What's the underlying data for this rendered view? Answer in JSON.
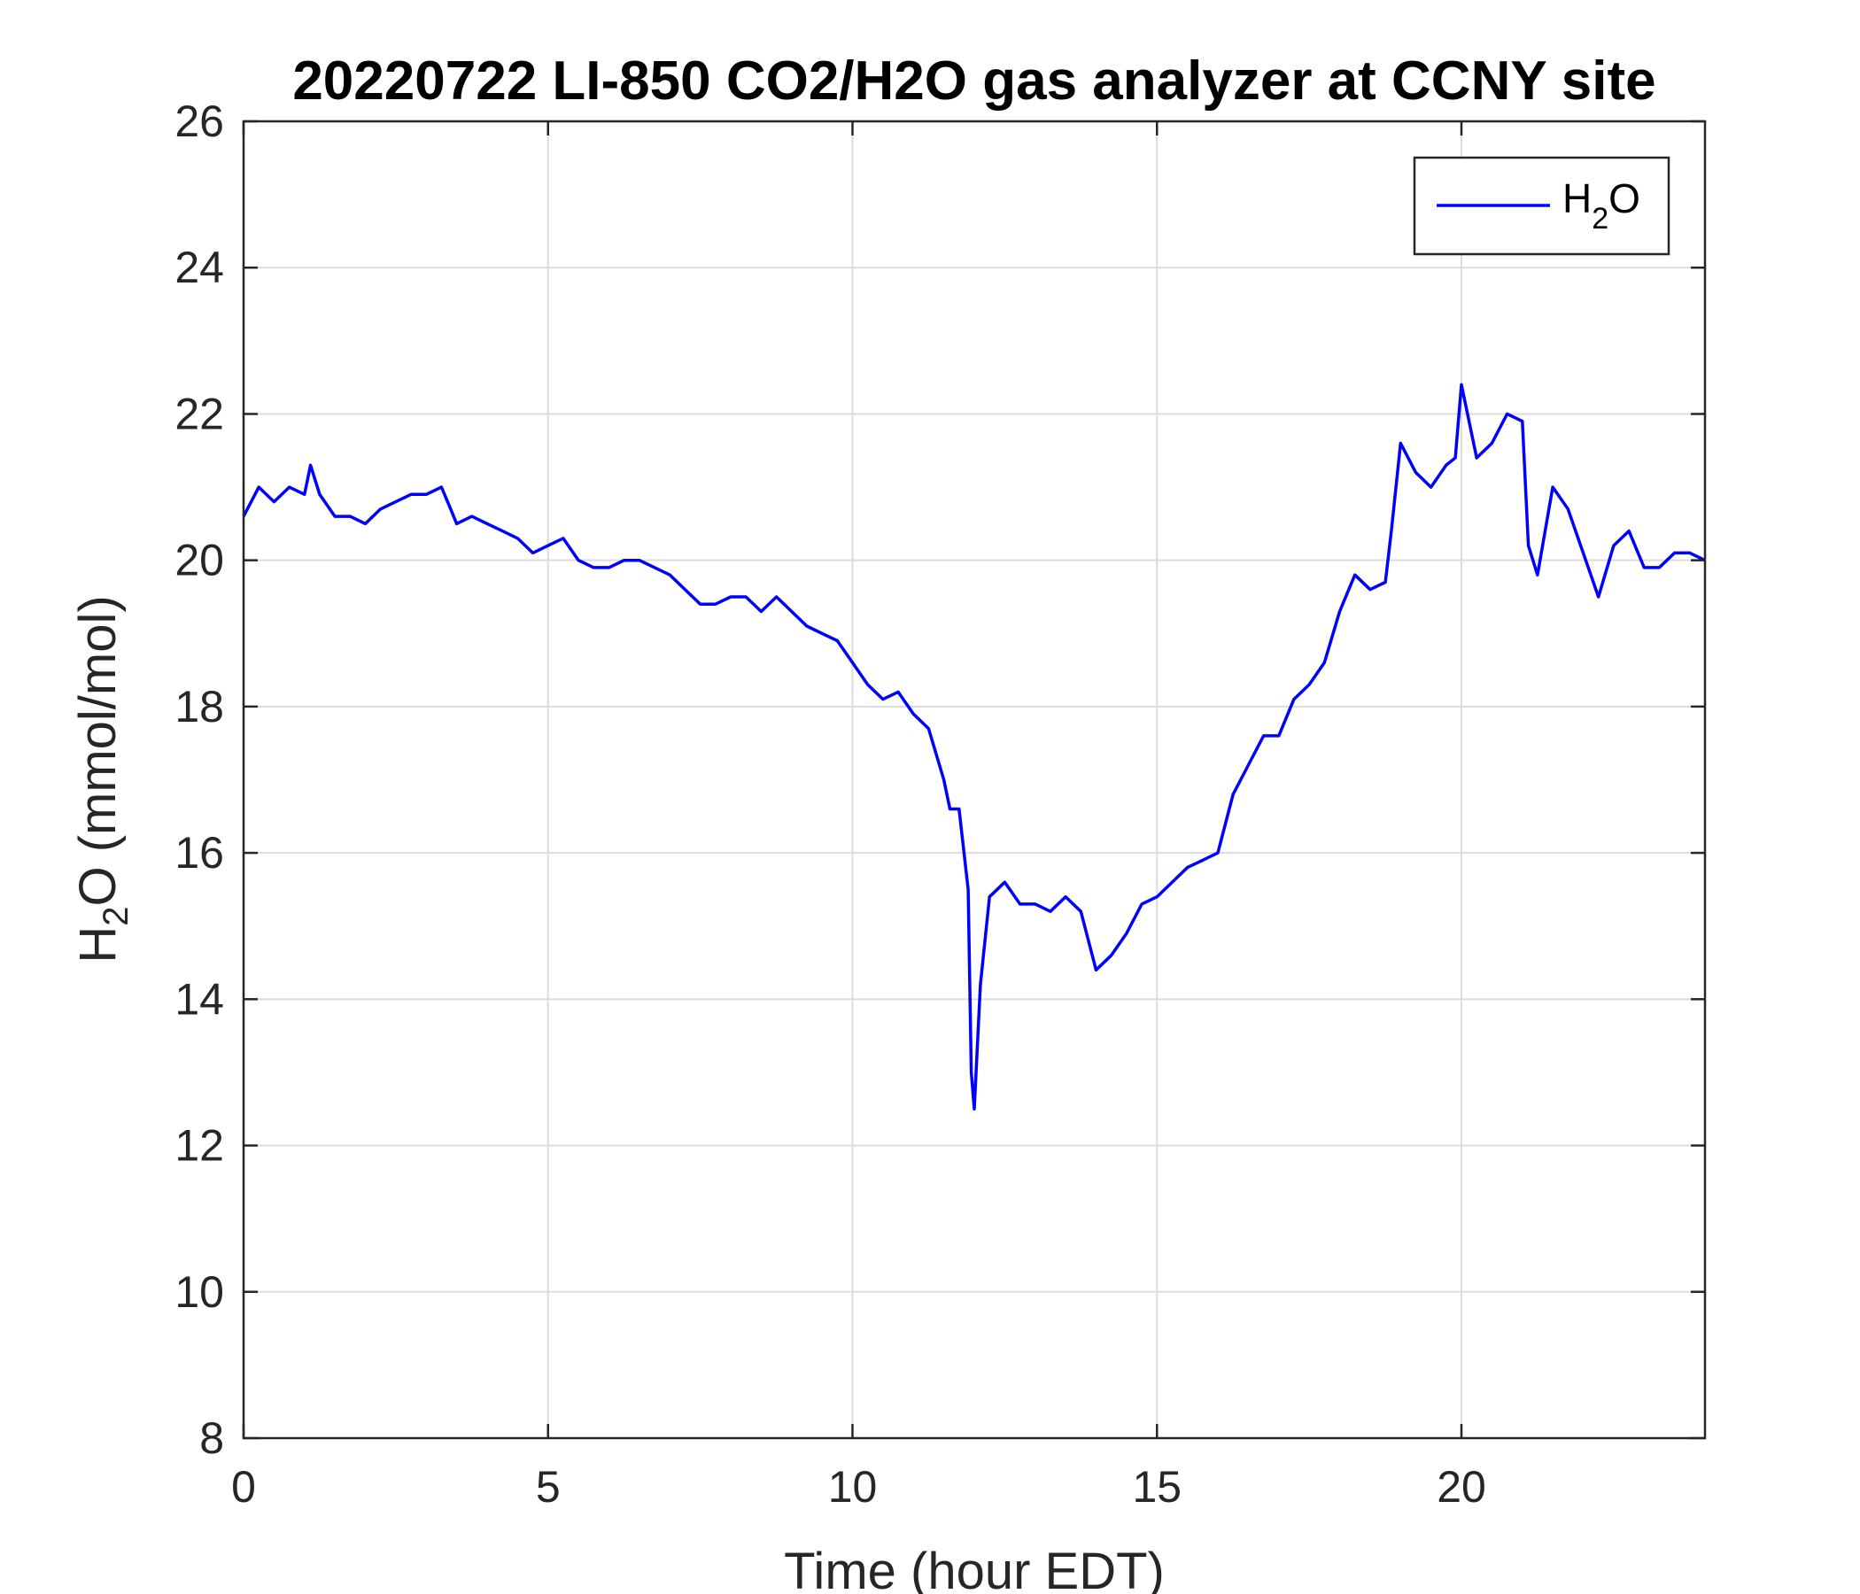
{
  "chart_data": {
    "type": "line",
    "title": "20220722 LI-850 CO2/H2O gas analyzer at CCNY site",
    "xlabel": "Time (hour EDT)",
    "ylabel": {
      "base": "H",
      "sub": "2",
      "rest": "O (mmol/mol)"
    },
    "xlim": [
      0,
      24
    ],
    "ylim": [
      8,
      26
    ],
    "xticks": [
      0,
      5,
      10,
      15,
      20
    ],
    "yticks": [
      8,
      10,
      12,
      14,
      16,
      18,
      20,
      22,
      24,
      26
    ],
    "grid": true,
    "legend_position": "top-right",
    "series": [
      {
        "name": {
          "base": "H",
          "sub": "2",
          "rest": "O"
        },
        "color": "#0000ff",
        "x": [
          0,
          0.25,
          0.5,
          0.75,
          1.0,
          1.1,
          1.25,
          1.5,
          1.75,
          2.0,
          2.25,
          2.5,
          2.75,
          3.0,
          3.25,
          3.4,
          3.5,
          3.75,
          4.0,
          4.25,
          4.5,
          4.75,
          5.0,
          5.25,
          5.5,
          5.75,
          6.0,
          6.25,
          6.5,
          6.75,
          7.0,
          7.25,
          7.5,
          7.75,
          8.0,
          8.25,
          8.5,
          8.75,
          9.0,
          9.25,
          9.5,
          9.75,
          10.0,
          10.25,
          10.5,
          10.75,
          11.0,
          11.25,
          11.5,
          11.6,
          11.75,
          11.9,
          11.95,
          12.0,
          12.1,
          12.25,
          12.5,
          12.75,
          13.0,
          13.25,
          13.5,
          13.75,
          14.0,
          14.25,
          14.5,
          14.75,
          15.0,
          15.25,
          15.5,
          15.75,
          16.0,
          16.25,
          16.5,
          16.75,
          17.0,
          17.25,
          17.5,
          17.75,
          18.0,
          18.25,
          18.5,
          18.75,
          18.85,
          19.0,
          19.25,
          19.5,
          19.75,
          19.9,
          20.0,
          20.25,
          20.5,
          20.75,
          21.0,
          21.1,
          21.25,
          21.5,
          21.75,
          22.0,
          22.25,
          22.5,
          22.75,
          23.0,
          23.25,
          23.5,
          23.75,
          24.0
        ],
        "y": [
          20.6,
          21.0,
          20.8,
          21.0,
          20.9,
          21.3,
          20.9,
          20.6,
          20.6,
          20.5,
          20.7,
          20.8,
          20.9,
          20.9,
          21.0,
          20.7,
          20.5,
          20.6,
          20.5,
          20.4,
          20.3,
          20.1,
          20.2,
          20.3,
          20.0,
          19.9,
          19.9,
          20.0,
          20.0,
          19.9,
          19.8,
          19.6,
          19.4,
          19.4,
          19.5,
          19.5,
          19.3,
          19.5,
          19.3,
          19.1,
          19.0,
          18.9,
          18.6,
          18.3,
          18.1,
          18.2,
          17.9,
          17.7,
          17.0,
          16.6,
          16.6,
          15.5,
          13.0,
          12.5,
          14.2,
          15.4,
          15.6,
          15.3,
          15.3,
          15.2,
          15.4,
          15.2,
          14.4,
          14.6,
          14.9,
          15.3,
          15.4,
          15.6,
          15.8,
          15.9,
          16.0,
          16.8,
          17.2,
          17.6,
          17.6,
          18.1,
          18.3,
          18.6,
          19.3,
          19.8,
          19.6,
          19.7,
          20.4,
          21.6,
          21.2,
          21.0,
          21.3,
          21.4,
          22.4,
          21.4,
          21.6,
          22.0,
          21.9,
          20.2,
          19.8,
          21.0,
          20.7,
          20.1,
          19.5,
          20.2,
          20.4,
          19.9,
          19.9,
          20.1,
          20.1,
          20.0
        ]
      }
    ]
  }
}
